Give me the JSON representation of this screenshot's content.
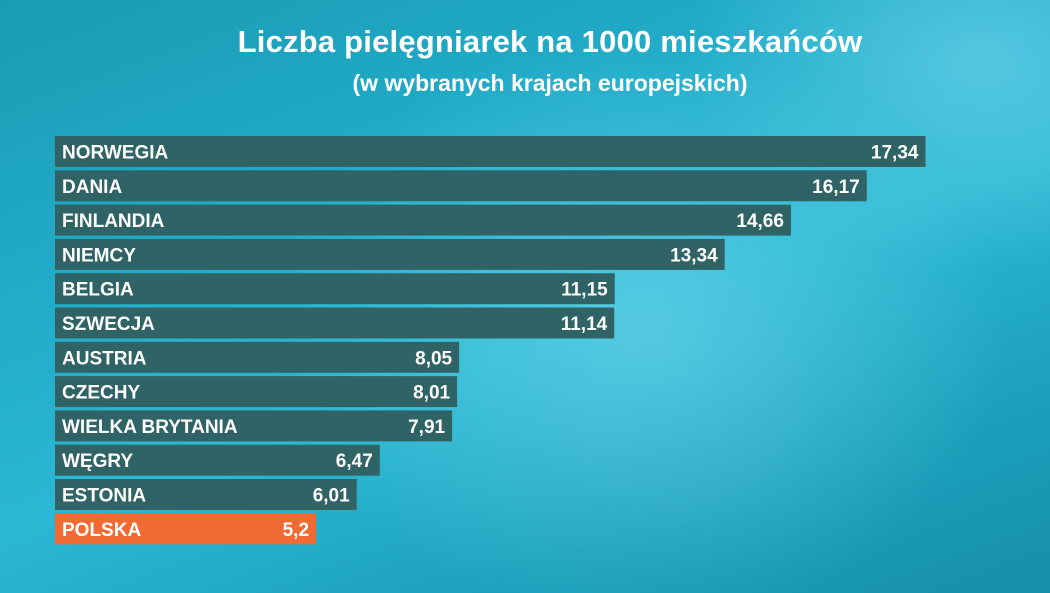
{
  "title": "Liczba pielęgniarek na 1000 mieszkańców",
  "subtitle": "(w wybranych krajach europejskich)",
  "colors": {
    "bar": "#2f6366",
    "highlight_bar": "#f26a33",
    "text": "#ffffff",
    "background": "#22aecb"
  },
  "chart_data": {
    "type": "bar",
    "orientation": "horizontal",
    "title": "Liczba pielęgniarek na 1000 mieszkańców",
    "subtitle": "(w wybranych krajach europejskich)",
    "categories": [
      "NORWEGIA",
      "DANIA",
      "FINLANDIA",
      "NIEMCY",
      "BELGIA",
      "SZWECJA",
      "AUSTRIA",
      "CZECHY",
      "WIELKA BRYTANIA",
      "WĘGRY",
      "ESTONIA",
      "POLSKA"
    ],
    "values": [
      17.34,
      16.17,
      14.66,
      13.34,
      11.15,
      11.14,
      8.05,
      8.01,
      7.91,
      6.47,
      6.01,
      5.2
    ],
    "value_labels": [
      "17,34",
      "16,17",
      "14,66",
      "13,34",
      "11,15",
      "11,14",
      "8,05",
      "8,01",
      "7,91",
      "6,47",
      "6,01",
      "5,2"
    ],
    "highlight": "POLSKA",
    "grid": false,
    "legend": "none",
    "xlabel": "",
    "ylabel": ""
  }
}
